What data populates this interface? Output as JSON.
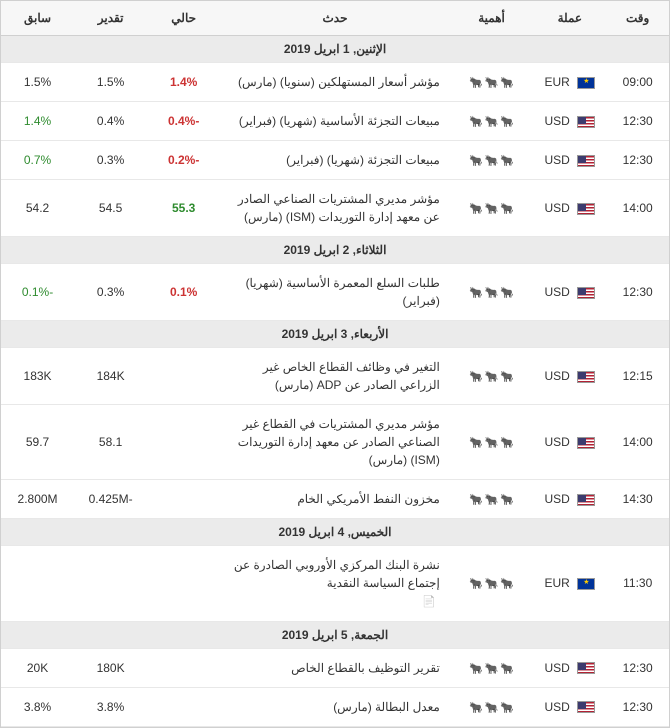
{
  "headers": {
    "time": "وقت",
    "currency": "عملة",
    "importance": "أهمية",
    "event": "حدث",
    "actual": "حالي",
    "forecast": "تقدير",
    "previous": "سابق"
  },
  "colors": {
    "positive": "#2e8b2e",
    "negative": "#cc3333",
    "neutral": "#333333",
    "header_bg": "#f7f7f7",
    "date_bg": "#ebebeb",
    "border": "#d0d0d0"
  },
  "days": [
    {
      "date": "الإثنين, 1 ابريل 2019",
      "rows": [
        {
          "time": "09:00",
          "currency": "EUR",
          "flag": "eur",
          "importance": 3,
          "event": "مؤشر أسعار المستهلكين (سنويا) (مارس)",
          "actual": "1.4%",
          "actual_class": "neg",
          "forecast": "1.5%",
          "previous": "1.5%",
          "previous_class": ""
        },
        {
          "time": "12:30",
          "currency": "USD",
          "flag": "usd",
          "importance": 3,
          "event": "مبيعات التجزئة الأساسية (شهريا) (فبراير)",
          "actual": "-0.4%",
          "actual_class": "neg",
          "forecast": "0.4%",
          "previous": "1.4%",
          "previous_class": "pos"
        },
        {
          "time": "12:30",
          "currency": "USD",
          "flag": "usd",
          "importance": 3,
          "event": "مبيعات التجزئة (شهريا) (فبراير)",
          "actual": "-0.2%",
          "actual_class": "neg",
          "forecast": "0.3%",
          "previous": "0.7%",
          "previous_class": "pos"
        },
        {
          "time": "14:00",
          "currency": "USD",
          "flag": "usd",
          "importance": 3,
          "event": "مؤشر مديري المشتريات الصناعي الصادر عن معهد إدارة التوريدات (ISM) (مارس)",
          "actual": "55.3",
          "actual_class": "pos",
          "forecast": "54.5",
          "previous": "54.2",
          "previous_class": ""
        }
      ]
    },
    {
      "date": "الثلاثاء, 2 ابريل 2019",
      "rows": [
        {
          "time": "12:30",
          "currency": "USD",
          "flag": "usd",
          "importance": 3,
          "event": "طلبات السلع المعمرة الأساسية (شهريا) (فبراير)",
          "actual": "0.1%",
          "actual_class": "neg",
          "forecast": "0.3%",
          "previous": "-0.1%",
          "previous_class": "pos"
        }
      ]
    },
    {
      "date": "الأربعاء, 3 ابريل 2019",
      "rows": [
        {
          "time": "12:15",
          "currency": "USD",
          "flag": "usd",
          "importance": 3,
          "event": "التغير في وظائف القطاع الخاص غير الزراعي الصادر عن ADP (مارس)",
          "actual": "",
          "actual_class": "",
          "forecast": "184K",
          "previous": "183K",
          "previous_class": ""
        },
        {
          "time": "14:00",
          "currency": "USD",
          "flag": "usd",
          "importance": 3,
          "event": "مؤشر مديري المشتريات في القطاع غير الصناعي الصادر عن معهد إدارة التوريدات (ISM) (مارس)",
          "actual": "",
          "actual_class": "",
          "forecast": "58.1",
          "previous": "59.7",
          "previous_class": ""
        },
        {
          "time": "14:30",
          "currency": "USD",
          "flag": "usd",
          "importance": 3,
          "event": "مخزون النفط الأمريكي الخام",
          "actual": "",
          "actual_class": "",
          "forecast": "-0.425M",
          "previous": "2.800M",
          "previous_class": ""
        }
      ]
    },
    {
      "date": "الخميس, 4 ابريل 2019",
      "rows": [
        {
          "time": "11:30",
          "currency": "EUR",
          "flag": "eur",
          "importance": 3,
          "event": "نشرة البنك المركزي الأوروبي الصادرة عن إجتماع السياسة النقدية",
          "actual": "",
          "actual_class": "",
          "forecast": "",
          "previous": "",
          "previous_class": "",
          "doc": true
        }
      ]
    },
    {
      "date": "الجمعة, 5 ابريل 2019",
      "rows": [
        {
          "time": "12:30",
          "currency": "USD",
          "flag": "usd",
          "importance": 3,
          "event": "تقرير التوظيف بالقطاع الخاص",
          "actual": "",
          "actual_class": "",
          "forecast": "180K",
          "previous": "20K",
          "previous_class": ""
        },
        {
          "time": "12:30",
          "currency": "USD",
          "flag": "usd",
          "importance": 3,
          "event": "معدل البطالة (مارس)",
          "actual": "",
          "actual_class": "",
          "forecast": "3.8%",
          "previous": "3.8%",
          "previous_class": ""
        }
      ]
    }
  ]
}
